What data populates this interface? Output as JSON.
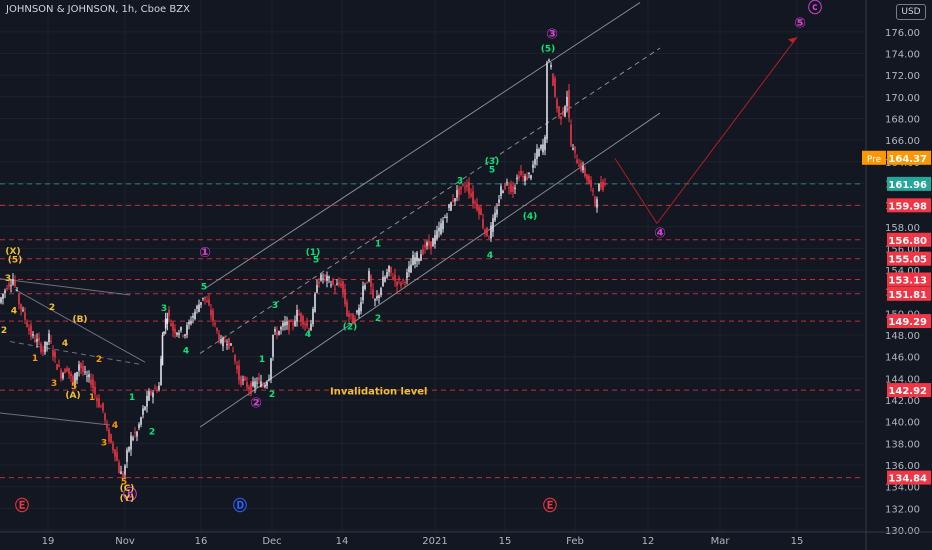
{
  "header": {
    "title": "JOHNSON & JOHNSON, 1h, Cboe BZX",
    "currency": "USD"
  },
  "chart_data": {
    "type": "candlestick",
    "y_range": [
      130,
      178
    ],
    "y_ticks": [
      130,
      132,
      134,
      136,
      138,
      140,
      142,
      144,
      146,
      148,
      150,
      152,
      154,
      156,
      158,
      160,
      162,
      164,
      166,
      168,
      170,
      172,
      174,
      176
    ],
    "x_ticks": [
      "19",
      "Nov",
      "16",
      "Dec",
      "14",
      "2021",
      "15",
      "Feb",
      "12",
      "Mar",
      "15"
    ],
    "price_path": [
      [
        0,
        151
      ],
      [
        8,
        152.6
      ],
      [
        14,
        153.2
      ],
      [
        20,
        151
      ],
      [
        26,
        149.5
      ],
      [
        32,
        148
      ],
      [
        38,
        147.4
      ],
      [
        44,
        146.6
      ],
      [
        50,
        147.8
      ],
      [
        56,
        145.6
      ],
      [
        62,
        144.4
      ],
      [
        68,
        145
      ],
      [
        74,
        143.5
      ],
      [
        80,
        145.4
      ],
      [
        86,
        144.2
      ],
      [
        92,
        143.8
      ],
      [
        98,
        142
      ],
      [
        104,
        141
      ],
      [
        108,
        139
      ],
      [
        112,
        138
      ],
      [
        116,
        137.2
      ],
      [
        120,
        135.5
      ],
      [
        124,
        134.9
      ],
      [
        128,
        137
      ],
      [
        132,
        138.5
      ],
      [
        138,
        139
      ],
      [
        144,
        141
      ],
      [
        150,
        142.5
      ],
      [
        156,
        143
      ],
      [
        160,
        143.3
      ],
      [
        163,
        148
      ],
      [
        168,
        150
      ],
      [
        174,
        148.5
      ],
      [
        180,
        148.4
      ],
      [
        186,
        148.2
      ],
      [
        192,
        149.5
      ],
      [
        198,
        150.5
      ],
      [
        204,
        151.6
      ],
      [
        210,
        150.5
      ],
      [
        216,
        148.8
      ],
      [
        222,
        147.2
      ],
      [
        228,
        147.6
      ],
      [
        234,
        146.4
      ],
      [
        240,
        144
      ],
      [
        246,
        143.5
      ],
      [
        252,
        143
      ],
      [
        258,
        143.8
      ],
      [
        264,
        143.3
      ],
      [
        270,
        144.3
      ],
      [
        274,
        148
      ],
      [
        280,
        148.4
      ],
      [
        286,
        149
      ],
      [
        292,
        148.8
      ],
      [
        298,
        150
      ],
      [
        304,
        149.4
      ],
      [
        310,
        148.5
      ],
      [
        314,
        150
      ],
      [
        318,
        153
      ],
      [
        324,
        153.3
      ],
      [
        330,
        153
      ],
      [
        336,
        152.4
      ],
      [
        342,
        152.8
      ],
      [
        348,
        150
      ],
      [
        354,
        149.3
      ],
      [
        360,
        150.4
      ],
      [
        364,
        152.5
      ],
      [
        370,
        153.5
      ],
      [
        374,
        151
      ],
      [
        378,
        151.4
      ],
      [
        384,
        153
      ],
      [
        390,
        154
      ],
      [
        396,
        153
      ],
      [
        402,
        152.8
      ],
      [
        408,
        153.5
      ],
      [
        414,
        155
      ],
      [
        420,
        155.3
      ],
      [
        426,
        156.2
      ],
      [
        432,
        156.4
      ],
      [
        438,
        157.3
      ],
      [
        444,
        158.5
      ],
      [
        450,
        159.8
      ],
      [
        456,
        160.9
      ],
      [
        462,
        161.5
      ],
      [
        468,
        161.9
      ],
      [
        474,
        160.4
      ],
      [
        480,
        159.6
      ],
      [
        486,
        157.5
      ],
      [
        490,
        157.2
      ],
      [
        496,
        159
      ],
      [
        502,
        161.5
      ],
      [
        508,
        162
      ],
      [
        514,
        161.5
      ],
      [
        520,
        162.9
      ],
      [
        526,
        162.4
      ],
      [
        532,
        163
      ],
      [
        538,
        164.8
      ],
      [
        544,
        165.5
      ],
      [
        546,
        166
      ],
      [
        548,
        173.5
      ],
      [
        552,
        172.6
      ],
      [
        556,
        170
      ],
      [
        560,
        168
      ],
      [
        564,
        168.6
      ],
      [
        568,
        170.2
      ],
      [
        572,
        165.5
      ],
      [
        576,
        164.5
      ],
      [
        580,
        163.8
      ],
      [
        584,
        163.2
      ],
      [
        588,
        162.5
      ],
      [
        592,
        161.5
      ],
      [
        596,
        160.2
      ],
      [
        600,
        161.7
      ],
      [
        606,
        161.9
      ]
    ],
    "price_lines": [
      {
        "value": 164.37,
        "label": "164.37",
        "tag": "Pre",
        "color": "#ff9800"
      },
      {
        "value": 161.96,
        "label": "161.96",
        "color": "#26a69a"
      },
      {
        "value": 159.98,
        "label": "159.98",
        "color": "#f23645"
      },
      {
        "value": 156.8,
        "label": "156.80",
        "color": "#f23645"
      },
      {
        "value": 155.05,
        "label": "155.05",
        "color": "#f23645"
      },
      {
        "value": 153.13,
        "label": "153.13",
        "color": "#f23645"
      },
      {
        "value": 151.81,
        "label": "151.81",
        "color": "#f23645"
      },
      {
        "value": 149.29,
        "label": "149.29",
        "color": "#f23645"
      },
      {
        "value": 142.92,
        "label": "142.92",
        "color": "#f23645"
      },
      {
        "value": 134.84,
        "label": "134.84",
        "color": "#f23645"
      }
    ],
    "annotations": [
      {
        "text": "Invalidation level",
        "x": 330,
        "y": 142.5,
        "color": "#f0c030"
      }
    ],
    "wave_labels": [
      {
        "text": "①",
        "x": 205,
        "y": 155.2,
        "color": "#d040d0"
      },
      {
        "text": "②",
        "x": 256,
        "y": 141.3,
        "color": "#d040d0"
      },
      {
        "text": "③",
        "x": 552,
        "y": 175.4,
        "color": "#d040d0"
      },
      {
        "text": "④",
        "x": 660,
        "y": 157,
        "color": "#d040d0"
      },
      {
        "text": "⑤",
        "x": 800,
        "y": 176.4,
        "color": "#d040d0"
      },
      {
        "text": "ⓒ",
        "x": 815,
        "y": 177.8,
        "color": "#d040d0"
      },
      {
        "text": "ⓑ",
        "x": 130,
        "y": 132.8,
        "color": "#d040d0"
      },
      {
        "text": "Ⓔ",
        "x": 22,
        "y": 131.8,
        "color": "#f23645"
      },
      {
        "text": "Ⓓ",
        "x": 240,
        "y": 131.8,
        "color": "#2962ff"
      },
      {
        "text": "Ⓔ",
        "x": 550,
        "y": 131.8,
        "color": "#f23645"
      },
      {
        "text": "(5)",
        "x": 548,
        "y": 174.2,
        "color": "#00e676"
      },
      {
        "text": "(3)",
        "x": 492,
        "y": 163.8,
        "color": "#00e676"
      },
      {
        "text": "5",
        "x": 492,
        "y": 163.0,
        "color": "#00e676"
      },
      {
        "text": "3",
        "x": 460,
        "y": 162.0,
        "color": "#00e676"
      },
      {
        "text": "(4)",
        "x": 530,
        "y": 158.7,
        "color": "#00e676"
      },
      {
        "text": "4",
        "x": 490,
        "y": 155.1,
        "color": "#00e676"
      },
      {
        "text": "1",
        "x": 378,
        "y": 156.2,
        "color": "#00e676"
      },
      {
        "text": "(1)",
        "x": 313,
        "y": 155.4,
        "color": "#00e676"
      },
      {
        "text": "5",
        "x": 316,
        "y": 154.7,
        "color": "#00e676"
      },
      {
        "text": "3",
        "x": 275,
        "y": 150.5,
        "color": "#00e676"
      },
      {
        "text": "4",
        "x": 308,
        "y": 147.8,
        "color": "#00e676"
      },
      {
        "text": "(2)",
        "x": 350,
        "y": 148.5,
        "color": "#00e676"
      },
      {
        "text": "2",
        "x": 378,
        "y": 149.3,
        "color": "#00e676"
      },
      {
        "text": "1",
        "x": 262,
        "y": 145.5,
        "color": "#00e676"
      },
      {
        "text": "2",
        "x": 272,
        "y": 142.3,
        "color": "#00e676"
      },
      {
        "text": "5",
        "x": 204,
        "y": 152.2,
        "color": "#00e676"
      },
      {
        "text": "3",
        "x": 164,
        "y": 150.2,
        "color": "#00e676"
      },
      {
        "text": "4",
        "x": 186,
        "y": 146.3,
        "color": "#00e676"
      },
      {
        "text": "1",
        "x": 132,
        "y": 142.0,
        "color": "#00e676"
      },
      {
        "text": "2",
        "x": 152,
        "y": 138.8,
        "color": "#00e676"
      },
      {
        "text": "(X)",
        "x": 13,
        "y": 155.5,
        "color": "#f0c030"
      },
      {
        "text": "(5)",
        "x": 15,
        "y": 154.7,
        "color": "#f0c030"
      },
      {
        "text": "3",
        "x": 8,
        "y": 153.0,
        "color": "#f0c030"
      },
      {
        "text": "4",
        "x": 14,
        "y": 150.0,
        "color": "#f0c030"
      },
      {
        "text": "2",
        "x": 4,
        "y": 148.2,
        "color": "#f0c030"
      },
      {
        "text": "(B)",
        "x": 80,
        "y": 149.2,
        "color": "#f0c030"
      },
      {
        "text": "2",
        "x": 52,
        "y": 150.3,
        "color": "#f0c030"
      },
      {
        "text": "4",
        "x": 65,
        "y": 147.0,
        "color": "#f0c030"
      },
      {
        "text": "2",
        "x": 99,
        "y": 145.5,
        "color": "#ff9800"
      },
      {
        "text": "3",
        "x": 54,
        "y": 143.3,
        "color": "#ff9800"
      },
      {
        "text": "5",
        "x": 74,
        "y": 143.0,
        "color": "#ff9800"
      },
      {
        "text": "1",
        "x": 35,
        "y": 145.6,
        "color": "#ff9800"
      },
      {
        "text": "(A)",
        "x": 73,
        "y": 142.2,
        "color": "#f0c030"
      },
      {
        "text": "1",
        "x": 92,
        "y": 142.0,
        "color": "#ff9800"
      },
      {
        "text": "4",
        "x": 115,
        "y": 139.4,
        "color": "#ff9800"
      },
      {
        "text": "3",
        "x": 104,
        "y": 137.8,
        "color": "#ff9800"
      },
      {
        "text": "5",
        "x": 124,
        "y": 134.2,
        "color": "#ff9800"
      },
      {
        "text": "(C)",
        "x": 127,
        "y": 133.6,
        "color": "#f0c030"
      },
      {
        "text": "(Y)",
        "x": 127,
        "y": 132.7,
        "color": "#f0c030"
      }
    ],
    "drawings": [
      {
        "kind": "channel-upper",
        "from": [
          205,
          152.3
        ],
        "to": [
          640,
          178.7
        ],
        "color": "#9598a1",
        "dash": false
      },
      {
        "kind": "channel-middle",
        "from": [
          200,
          146.3
        ],
        "to": [
          660,
          174.5
        ],
        "color": "#9598a1",
        "dash": true
      },
      {
        "kind": "channel-lower",
        "from": [
          200,
          139.5
        ],
        "to": [
          660,
          168.5
        ],
        "color": "#9598a1",
        "dash": false
      },
      {
        "kind": "forecast",
        "from": [
          615,
          164.3
        ],
        "to": [
          657,
          158.3
        ],
        "color": "#c0201f",
        "dash": false
      },
      {
        "kind": "forecast",
        "from": [
          657,
          158.3
        ],
        "to": [
          797,
          175.5
        ],
        "color": "#c0201f",
        "dash": false
      },
      {
        "kind": "old-channel-a",
        "from": [
          0,
          153.2
        ],
        "to": [
          130,
          151.7
        ],
        "color": "#787b86",
        "dash": false
      },
      {
        "kind": "old-channel-b",
        "from": [
          15,
          152.2
        ],
        "to": [
          145,
          145.5
        ],
        "color": "#787b86",
        "dash": false
      },
      {
        "kind": "old-channel-c",
        "from": [
          0,
          140.8
        ],
        "to": [
          110,
          139.7
        ],
        "color": "#787b86",
        "dash": false
      },
      {
        "kind": "old-channel-d",
        "from": [
          10,
          147.4
        ],
        "to": [
          140,
          145.3
        ],
        "color": "#787b86",
        "dash": true
      }
    ]
  }
}
